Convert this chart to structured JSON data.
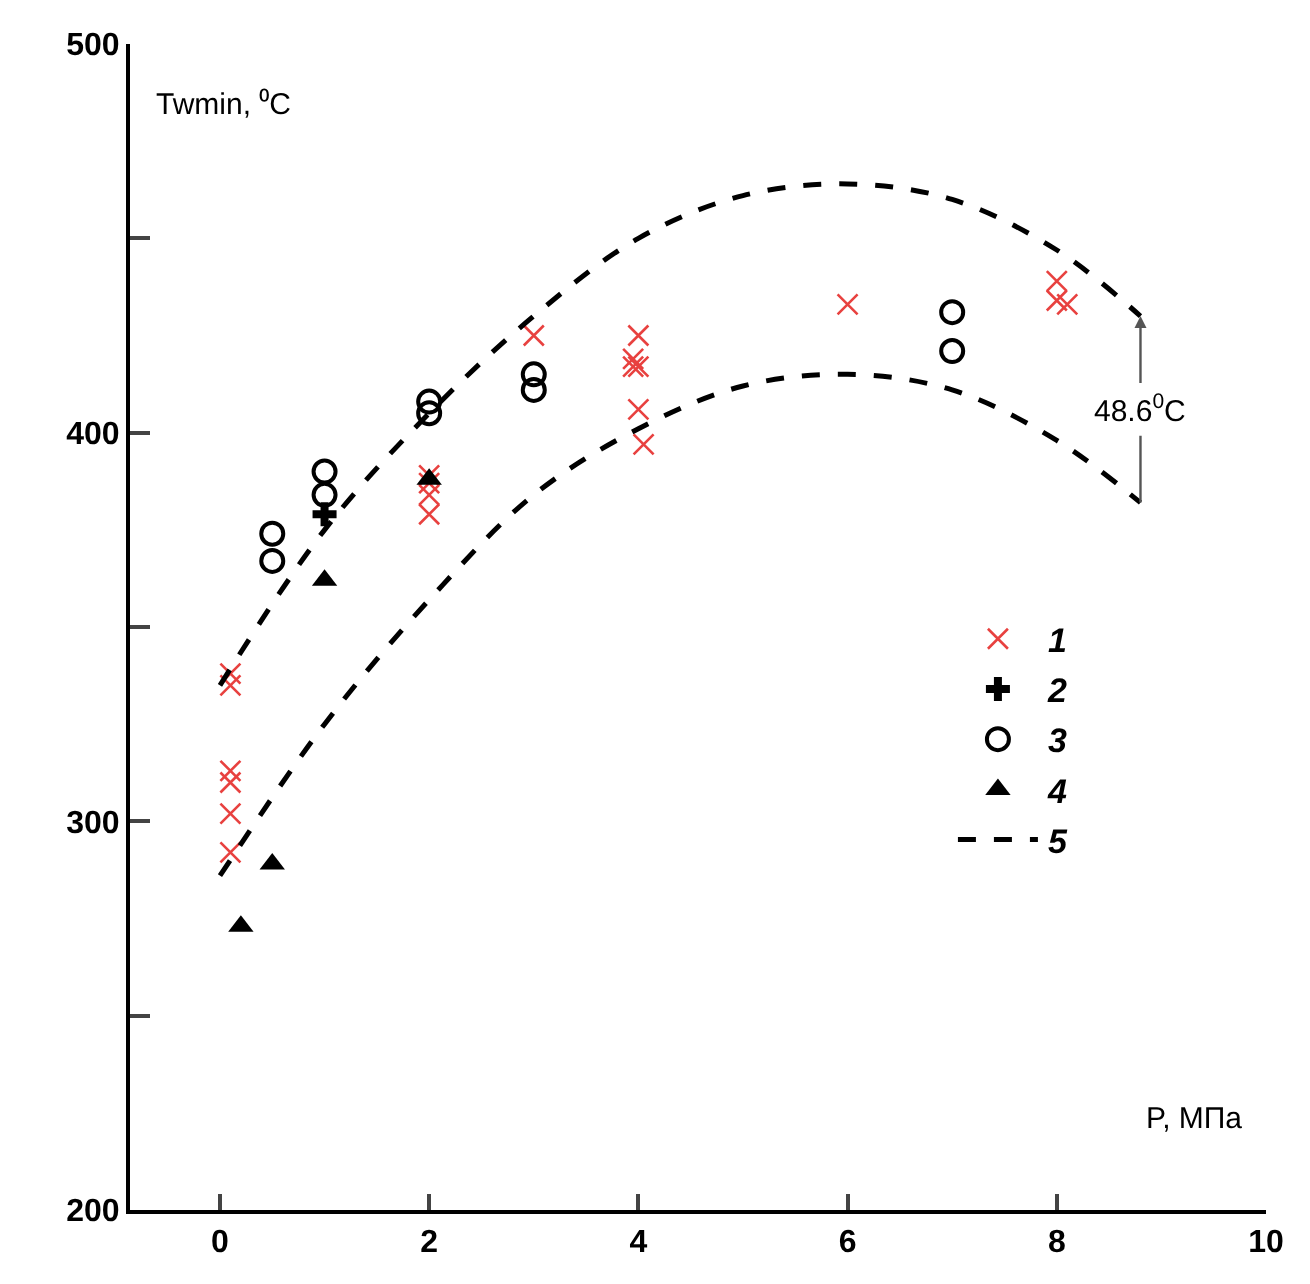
{
  "chart_data": {
    "type": "scatter",
    "xlabel": "P, МПа",
    "ylabel": "Twmin, ⁰C",
    "xlim": [
      -0.86,
      10
    ],
    "ylim": [
      200,
      500
    ],
    "xticks": [
      0,
      2,
      4,
      6,
      8,
      10
    ],
    "yticks": [
      200,
      {
        "value": 250,
        "label": null
      },
      300,
      {
        "value": 350,
        "label": null
      },
      400,
      {
        "value": 450,
        "label": null
      },
      500
    ],
    "legend": "right",
    "series": [
      {
        "name": "1",
        "marker": "x",
        "color": "#e8413f",
        "x": [
          0.1,
          0.1,
          0.1,
          0.1,
          0.1,
          0.1,
          2,
          2,
          2,
          2,
          3,
          4,
          3.95,
          4,
          3.95,
          4,
          4.05,
          6,
          8,
          8,
          8.1
        ],
        "values": [
          338,
          335,
          313,
          310,
          302,
          292,
          389,
          387,
          384,
          379,
          425,
          425,
          419,
          417,
          417,
          406,
          397,
          433,
          439,
          434,
          433
        ]
      },
      {
        "name": "2",
        "marker": "cross",
        "color": "#000000",
        "x": [
          1
        ],
        "values": [
          379
        ]
      },
      {
        "name": "3",
        "marker": "circle-open",
        "color": "#000000",
        "x": [
          0.5,
          0.5,
          1,
          1,
          2,
          2,
          3,
          3,
          7,
          7
        ],
        "values": [
          374,
          367,
          390,
          384,
          408,
          405,
          415,
          411,
          431,
          421
        ]
      },
      {
        "name": "4",
        "marker": "triangle",
        "color": "#000000",
        "x": [
          0.2,
          0.5,
          1,
          2
        ],
        "values": [
          273,
          289,
          362,
          388
        ]
      },
      {
        "name": "5",
        "type": "line",
        "line_style": "dashed",
        "color": "#000000",
        "x": [
          0,
          1,
          2,
          3,
          4,
          5,
          6,
          7,
          8,
          8.8
        ],
        "values": [
          335,
          375,
          405,
          430,
          450,
          461,
          464,
          460,
          447,
          430
        ]
      },
      {
        "type": "line",
        "line_style": "dashed",
        "color": "#000000",
        "x": [
          0,
          1,
          2,
          3,
          4,
          5,
          6,
          7,
          8,
          8.8
        ],
        "values": [
          286,
          325,
          357,
          384,
          401,
          412,
          415,
          411,
          398,
          382
        ]
      }
    ],
    "annotations": [
      {
        "text": "48.6$^{0}$C",
        "x": 8.8,
        "y": 430
      }
    ]
  }
}
